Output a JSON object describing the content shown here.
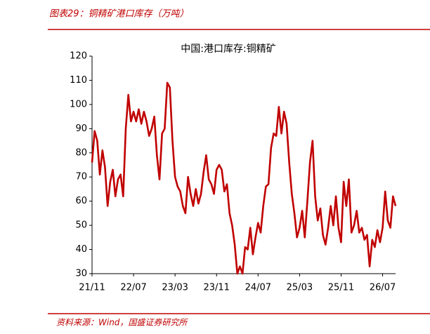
{
  "header": "图表29：铜精矿港口库存（万吨）",
  "source": "资料来源：Wind，国盛证券研究所",
  "chart_data": {
    "type": "line",
    "title": "中国:港口库存:铜精矿",
    "categories": [
      "21/11",
      null,
      null,
      null,
      null,
      null,
      null,
      null,
      null,
      null,
      null,
      null,
      null,
      null,
      null,
      null,
      "22/07",
      null,
      null,
      null,
      null,
      null,
      null,
      null,
      null,
      null,
      null,
      null,
      null,
      null,
      null,
      null,
      "23/03",
      null,
      null,
      null,
      null,
      null,
      null,
      null,
      null,
      null,
      null,
      null,
      null,
      null,
      null,
      null,
      "23/11",
      null,
      null,
      null,
      null,
      null,
      null,
      null,
      null,
      null,
      null,
      null,
      null,
      null,
      null,
      null,
      "24/07",
      null,
      null,
      null,
      null,
      null,
      null,
      null,
      null,
      null,
      null,
      null,
      null,
      null,
      null,
      null,
      "25/03",
      null,
      null,
      null,
      null,
      null,
      null,
      null,
      null,
      null,
      null,
      null,
      null,
      null,
      null,
      null,
      "25/11",
      null,
      null,
      null,
      null,
      null,
      null,
      null,
      null,
      null,
      null,
      null,
      null,
      null,
      null,
      null,
      "26/07",
      null,
      null,
      null,
      null,
      null
    ],
    "series": [
      {
        "name": "中国:港口库存:铜精矿",
        "color": "#c00000",
        "values": [
          76,
          89,
          85,
          71,
          81,
          74,
          58,
          68,
          73,
          62,
          69,
          71,
          62,
          90,
          104,
          93,
          97,
          93,
          98,
          92,
          97,
          93,
          87,
          90,
          95,
          79,
          69,
          88,
          90,
          109,
          107,
          85,
          70,
          66,
          64,
          58,
          55,
          70,
          63,
          58,
          65,
          59,
          63,
          72,
          79,
          69,
          67,
          63,
          73,
          75,
          73,
          64,
          67,
          55,
          50,
          42,
          30,
          33,
          30,
          41,
          40,
          49,
          38,
          45,
          51,
          47,
          58,
          66,
          67,
          82,
          88,
          87,
          99,
          88,
          97,
          92,
          76,
          63,
          55,
          45,
          49,
          56,
          45,
          60,
          76,
          85,
          62,
          52,
          57,
          46,
          42,
          49,
          58,
          50,
          62,
          49,
          43,
          68,
          58,
          69,
          47,
          50,
          56,
          47,
          49,
          44,
          46,
          33,
          44,
          41,
          48,
          43,
          49,
          64,
          52,
          49,
          62,
          58
        ]
      }
    ],
    "ylim": [
      30,
      120
    ],
    "yticks": [
      30,
      40,
      50,
      60,
      70,
      80,
      90,
      100,
      110,
      120
    ],
    "grid": false
  }
}
